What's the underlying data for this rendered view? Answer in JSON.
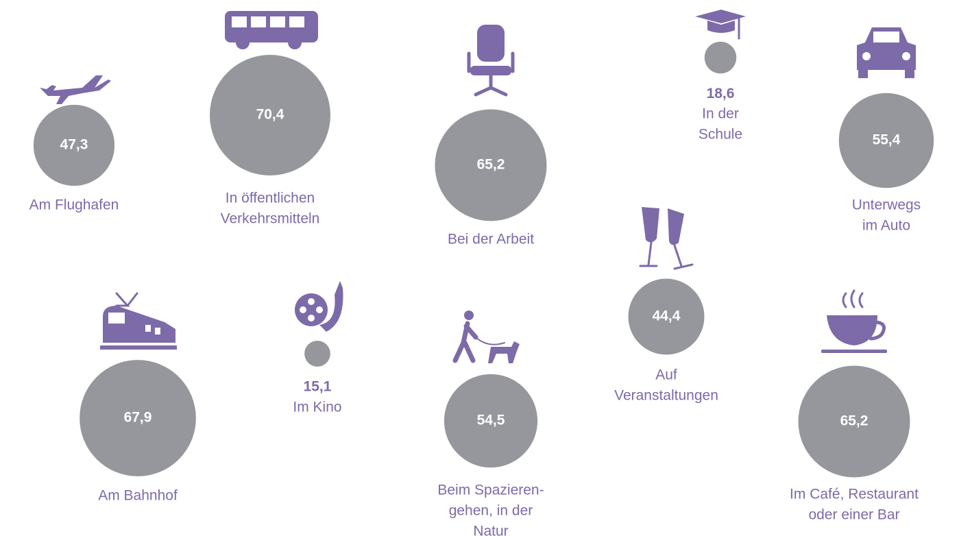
{
  "chart_data": {
    "type": "bubble",
    "categories": [
      [
        "Am Flughafen"
      ],
      [
        "In öffentlichen",
        "Verkehrsmitteln"
      ],
      [
        "Bei der Arbeit"
      ],
      [
        "In der",
        "Schule"
      ],
      [
        "Unterwegs",
        "im Auto"
      ],
      [
        "Am Bahnhof"
      ],
      [
        "Im Kino"
      ],
      [
        "Beim Spazieren-",
        "gehen, in der",
        "Natur"
      ],
      [
        "Auf",
        "Veranstaltungen"
      ],
      [
        "Im Café, Restaurant",
        "oder einer Bar"
      ]
    ],
    "values": [
      47.3,
      70.4,
      65.2,
      18.6,
      55.4,
      67.9,
      15.1,
      54.5,
      44.4,
      65.2
    ],
    "value_labels": [
      "47,3",
      "70,4",
      "65,2",
      "18,6",
      "55,4",
      "67,9",
      "15,1",
      "54,5",
      "44,4",
      "65,2"
    ],
    "color": "#96979c",
    "label_color": "#7d6aa8"
  }
}
